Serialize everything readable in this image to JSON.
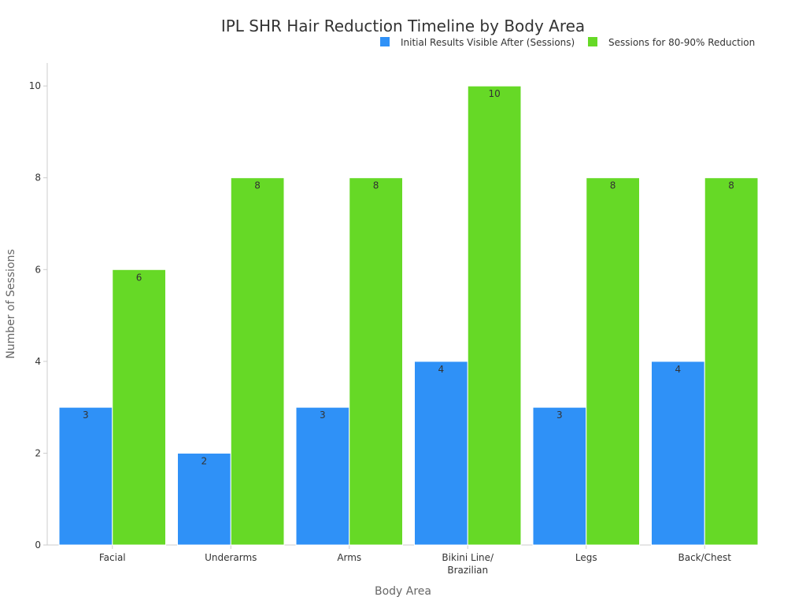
{
  "chart_data": {
    "type": "bar",
    "title": "IPL SHR Hair Reduction Timeline by Body Area",
    "xlabel": "Body Area",
    "ylabel": "Number of Sessions",
    "categories": [
      [
        "Facial"
      ],
      [
        "Underarms"
      ],
      [
        "Arms"
      ],
      [
        "Bikini Line/",
        "Brazilian"
      ],
      [
        "Legs"
      ],
      [
        "Back/Chest"
      ]
    ],
    "series": [
      {
        "name": "Initial Results Visible After (Sessions)",
        "color": "#2f91f7",
        "values": [
          3,
          2,
          3,
          4,
          3,
          4
        ]
      },
      {
        "name": "Sessions for 80-90% Reduction",
        "color": "#66d926",
        "values": [
          6,
          8,
          8,
          10,
          8,
          8
        ]
      }
    ],
    "ylim": [
      0,
      10.5
    ],
    "yticks": [
      0,
      2,
      4,
      6,
      8,
      10
    ],
    "legend_position": "top-right",
    "grid": false
  }
}
